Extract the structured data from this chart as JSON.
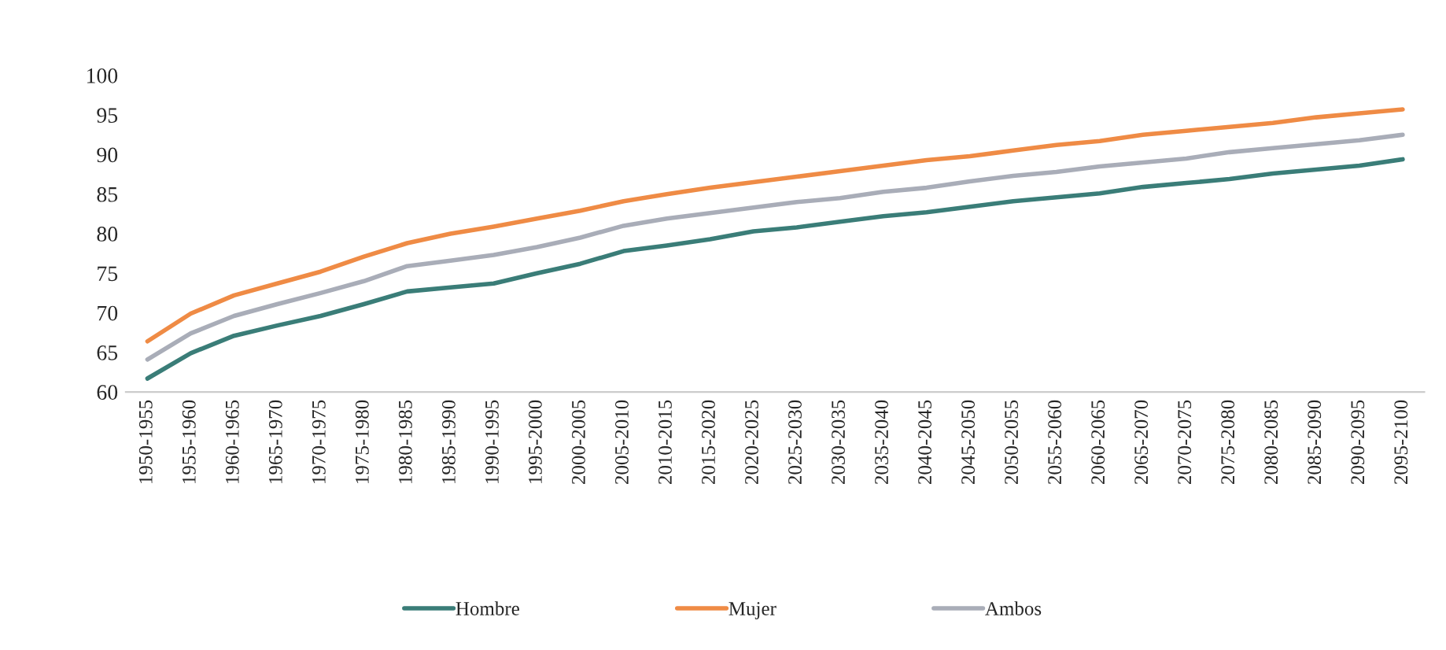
{
  "chart_data": {
    "type": "line",
    "categories": [
      "1950-1955",
      "1955-1960",
      "1960-1965",
      "1965-1970",
      "1970-1975",
      "1975-1980",
      "1980-1985",
      "1985-1990",
      "1990-1995",
      "1995-2000",
      "2000-2005",
      "2005-2010",
      "2010-2015",
      "2015-2020",
      "2020-2025",
      "2025-2030",
      "2030-2035",
      "2035-2040",
      "2040-2045",
      "2045-2050",
      "2050-2055",
      "2055-2060",
      "2060-2065",
      "2065-2070",
      "2070-2075",
      "2075-2080",
      "2080-2085",
      "2085-2090",
      "2090-2095",
      "2095-2100"
    ],
    "series": [
      {
        "name": "Hombre",
        "color": "#3a7d78",
        "values": [
          61.7,
          64.9,
          67.1,
          68.4,
          69.6,
          71.1,
          72.7,
          73.2,
          73.7,
          75.0,
          76.2,
          77.8,
          78.5,
          79.3,
          80.3,
          80.8,
          81.5,
          82.2,
          82.7,
          83.4,
          84.1,
          84.6,
          85.1,
          85.9,
          86.4,
          86.9,
          87.6,
          88.1,
          88.6,
          89.4
        ]
      },
      {
        "name": "Mujer",
        "color": "#ef8b45",
        "values": [
          66.4,
          69.9,
          72.2,
          73.7,
          75.2,
          77.1,
          78.8,
          80.0,
          80.9,
          81.9,
          82.9,
          84.1,
          85.0,
          85.8,
          86.5,
          87.2,
          87.9,
          88.6,
          89.3,
          89.8,
          90.5,
          91.2,
          91.7,
          92.5,
          93.0,
          93.5,
          94.0,
          94.7,
          95.2,
          95.7
        ]
      },
      {
        "name": "Ambos",
        "color": "#a9adb8",
        "values": [
          64.1,
          67.4,
          69.6,
          71.1,
          72.5,
          74.0,
          75.9,
          76.6,
          77.3,
          78.3,
          79.5,
          81.0,
          81.9,
          82.6,
          83.3,
          84.0,
          84.5,
          85.3,
          85.8,
          86.6,
          87.3,
          87.8,
          88.5,
          89.0,
          89.5,
          90.3,
          90.8,
          91.3,
          91.8,
          92.5
        ]
      }
    ],
    "ylim": [
      60,
      100
    ],
    "yticks": [
      60,
      65,
      70,
      75,
      80,
      85,
      90,
      95,
      100
    ],
    "grid": false,
    "legend": "bottom",
    "marker": "none",
    "line_style": "solid"
  }
}
